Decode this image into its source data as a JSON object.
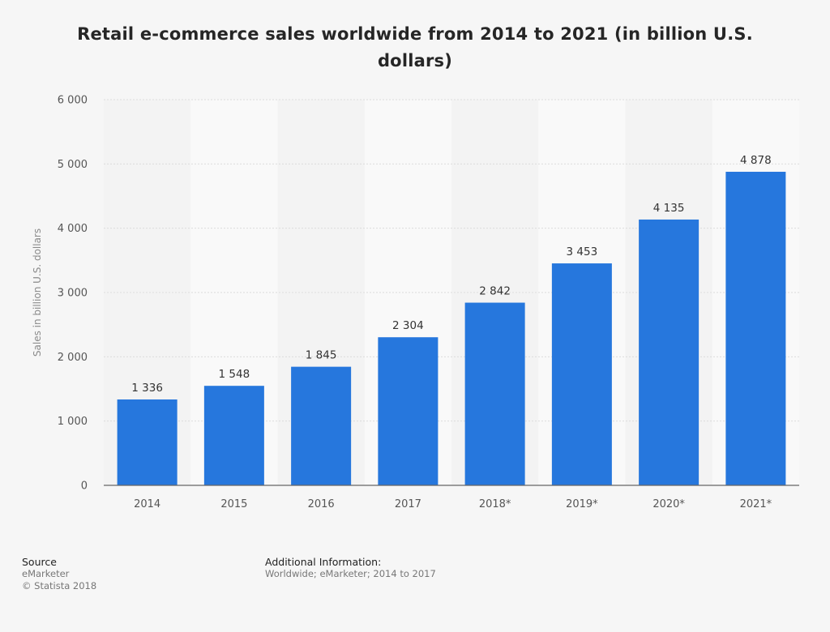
{
  "chart_data": {
    "type": "bar",
    "title": "Retail e-commerce sales worldwide from 2014 to 2021 (in billion U.S. dollars)",
    "title_lines": [
      "Retail e-commerce sales worldwide from 2014 to 2021 (in billion U.S.",
      "dollars)"
    ],
    "xlabel": "",
    "ylabel": "Sales in billion U.S. dollars",
    "categories": [
      "2014",
      "2015",
      "2016",
      "2017",
      "2018*",
      "2019*",
      "2020*",
      "2021*"
    ],
    "values": [
      1336,
      1548,
      1845,
      2304,
      2842,
      3453,
      4135,
      4878
    ],
    "value_labels": [
      "1 336",
      "1 548",
      "1 845",
      "2 304",
      "2 842",
      "3 453",
      "4 135",
      "4 878"
    ],
    "ylim": [
      0,
      6000
    ],
    "yticks": [
      0,
      1000,
      2000,
      3000,
      4000,
      5000,
      6000
    ],
    "ytick_labels": [
      "0",
      "1 000",
      "2 000",
      "3 000",
      "4 000",
      "5 000",
      "6 000"
    ],
    "bar_color": "#2677dd",
    "grid": true,
    "legend": "none"
  },
  "footer": {
    "source_heading": "Source",
    "source_lines": [
      "eMarketer",
      "© Statista 2018"
    ],
    "info_heading": "Additional Information:",
    "info_text": "Worldwide; eMarketer; 2014 to 2017"
  }
}
